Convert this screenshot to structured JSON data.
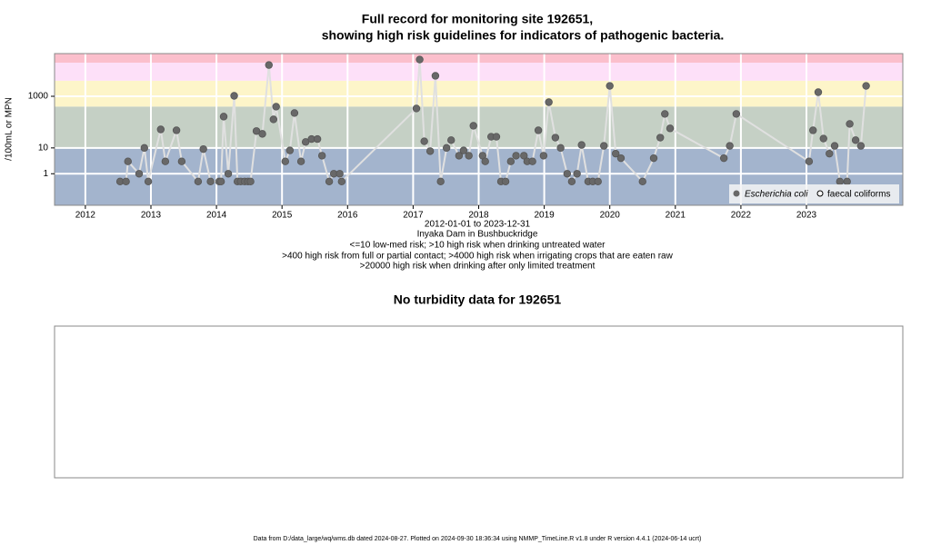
{
  "chart_data": [
    {
      "type": "line",
      "title": [
        "Full record for monitoring site 192651,",
        "showing high risk guidelines for indicators of pathogenic bacteria."
      ],
      "subtitle": [
        "2012-01-01 to 2023-12-31",
        "Inyaka Dam in Bushbuckridge",
        "<=10 low-med risk; >10 high risk when drinking untreated water",
        ">400 high risk from full or partial contact; >4000 high risk when irrigating crops that are eaten raw",
        ">20000 high risk when drinking after only limited treatment"
      ],
      "y_label": "/100mL or MPN",
      "log_y": true,
      "ylim": [
        0.06,
        45000
      ],
      "yticks": [
        1,
        10,
        1000
      ],
      "xlim": [
        2011.53,
        2024.47
      ],
      "xticks": [
        2012,
        2013,
        2014,
        2015,
        2016,
        2017,
        2018,
        2019,
        2020,
        2021,
        2022,
        2023
      ],
      "grid": true,
      "thresholds": [
        10,
        400,
        4000,
        20000
      ],
      "band_colors": [
        "#a3b4cd",
        "#c5d0c5",
        "#fdf5c9",
        "#fde0f8",
        "#fbbfcc"
      ],
      "line_color": "#e0e0e0",
      "legend_position": "bottom-right",
      "legend": [
        "Escherichia coli",
        "faecal coliforms"
      ],
      "x": [
        2012.53,
        2012.62,
        2012.65,
        2012.82,
        2012.9,
        2012.96,
        2013.15,
        2013.22,
        2013.39,
        2013.47,
        2013.72,
        2013.8,
        2013.91,
        2014.04,
        2014.07,
        2014.11,
        2014.18,
        2014.27,
        2014.32,
        2014.37,
        2014.43,
        2014.48,
        2014.52,
        2014.61,
        2014.7,
        2014.8,
        2014.87,
        2014.91,
        2015.05,
        2015.12,
        2015.19,
        2015.29,
        2015.36,
        2015.45,
        2015.54,
        2015.61,
        2015.72,
        2015.79,
        2015.88,
        2015.91,
        2017.05,
        2017.1,
        2017.17,
        2017.26,
        2017.34,
        2017.42,
        2017.51,
        2017.58,
        2017.7,
        2017.77,
        2017.85,
        2017.92,
        2018.06,
        2018.1,
        2018.19,
        2018.27,
        2018.34,
        2018.41,
        2018.49,
        2018.57,
        2018.69,
        2018.74,
        2018.82,
        2018.91,
        2018.99,
        2019.07,
        2019.17,
        2019.25,
        2019.35,
        2019.42,
        2019.5,
        2019.57,
        2019.67,
        2019.74,
        2019.82,
        2019.91,
        2020.0,
        2020.09,
        2020.17,
        2020.5,
        2020.67,
        2020.77,
        2020.84,
        2020.92,
        2021.74,
        2021.83,
        2021.93,
        2023.04,
        2023.1,
        2023.18,
        2023.26,
        2023.35,
        2023.43,
        2023.51,
        2023.62,
        2023.66,
        2023.75,
        2023.83,
        2023.91
      ],
      "series": [
        {
          "name": "Escherichia coli",
          "color": "#686868",
          "values": [
            0.5,
            0.5,
            3,
            1,
            10,
            0.5,
            52,
            3,
            48,
            3,
            0.5,
            9,
            0.5,
            0.5,
            0.5,
            163,
            1,
            1040,
            0.5,
            0.5,
            0.5,
            0.5,
            0.5,
            45,
            35,
            16200,
            127,
            396,
            3,
            8,
            224,
            3,
            17,
            22,
            22,
            5,
            0.5,
            1,
            1,
            0.5,
            336,
            26500,
            18,
            7.5,
            6200,
            0.5,
            10,
            20,
            5,
            8,
            5,
            72,
            5,
            3,
            27,
            27,
            0.5,
            0.5,
            3,
            5,
            5,
            3,
            3,
            48,
            5,
            590,
            25,
            10,
            1,
            0.5,
            1,
            13,
            0.5,
            0.5,
            0.5,
            12,
            2530,
            6,
            4,
            0.5,
            4,
            25,
            207,
            57,
            4,
            12,
            207,
            3,
            48,
            1440,
            23,
            6,
            12,
            0.5,
            0.5,
            85,
            20,
            12,
            2530
          ]
        }
      ]
    },
    {
      "type": "empty",
      "title": "No turbidity data for 192651"
    }
  ],
  "footer": "Data from D:/data_large/wq/wms.db dated 2024-08-27. Plotted on 2024-09-30 18:36:34 using NMMP_TimeLine.R v1.8 under R version 4.4.1 (2024-06-14 ucrt)"
}
